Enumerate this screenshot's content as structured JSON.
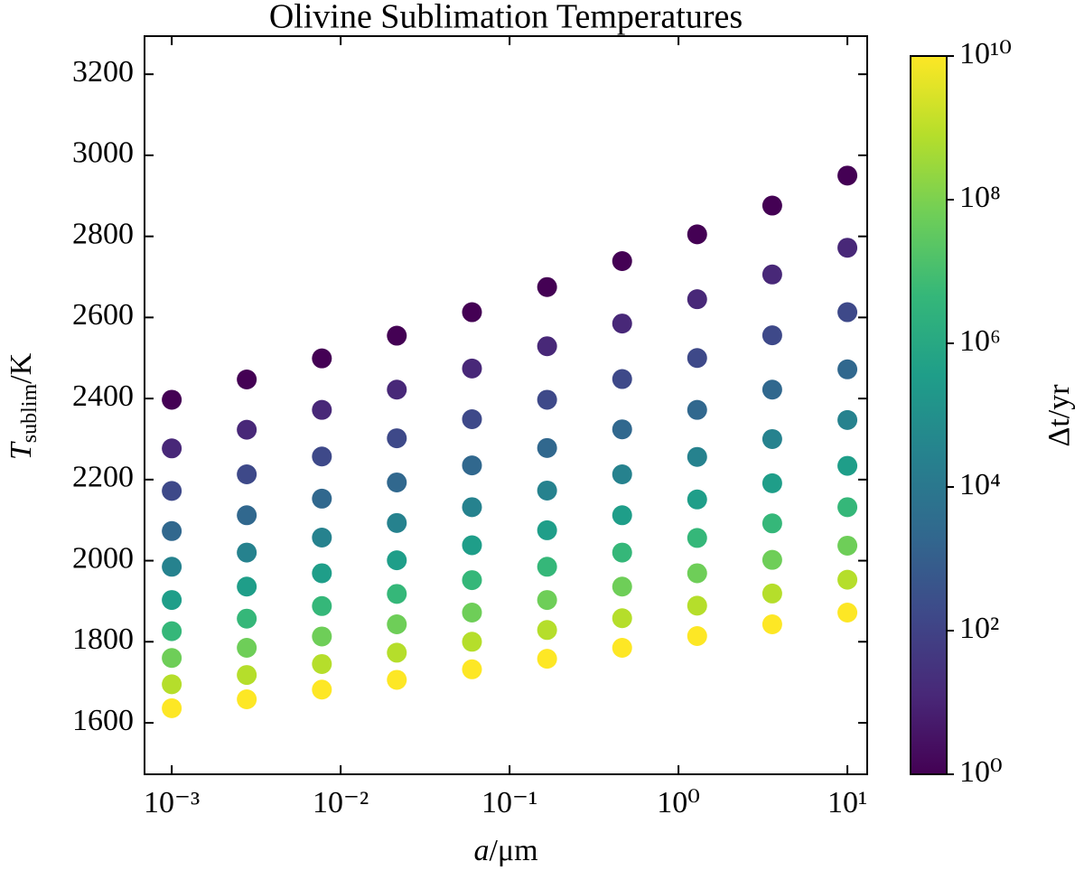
{
  "chart_data": {
    "type": "scatter",
    "title": "Olivine Sublimation Temperatures",
    "xlabel": [
      "a",
      "/μm"
    ],
    "ylabel": [
      "T",
      "sublim",
      "/K"
    ],
    "xscale": "log",
    "x": [
      0.001,
      0.00278,
      0.00774,
      0.0215,
      0.0599,
      0.1668,
      0.464,
      1.29,
      3.59,
      10
    ],
    "xlim": [
      0.00069,
      13.1
    ],
    "xticks": [
      {
        "value": 0.001,
        "label": "10⁻³"
      },
      {
        "value": 0.01,
        "label": "10⁻²"
      },
      {
        "value": 0.1,
        "label": "10⁻¹"
      },
      {
        "value": 1,
        "label": "10⁰"
      },
      {
        "value": 10,
        "label": "10¹"
      }
    ],
    "ylim": [
      1473,
      3294
    ],
    "yticks": [
      1600,
      1800,
      2000,
      2200,
      2400,
      2600,
      2800,
      3000,
      3200
    ],
    "colorbar": {
      "label": [
        "Δt",
        "/yr"
      ],
      "scale": "log",
      "lim": [
        1,
        10000000000
      ],
      "ticks": [
        {
          "value": 1,
          "label": "10⁰"
        },
        {
          "value": 100,
          "label": "10²"
        },
        {
          "value": 10000,
          "label": "10⁴"
        },
        {
          "value": 1000000,
          "label": "10⁶"
        },
        {
          "value": 100000000,
          "label": "10⁸"
        },
        {
          "value": 10000000000,
          "label": "10¹⁰"
        }
      ],
      "colormap": [
        "#440154",
        "#482878",
        "#3e4989",
        "#31688e",
        "#26828e",
        "#1f9e89",
        "#35b779",
        "#6ece58",
        "#b5de2b",
        "#fde725"
      ]
    },
    "series": [
      {
        "c": 1,
        "values": [
          2397,
          2447,
          2499,
          2555,
          2613,
          2675,
          2739,
          2805,
          2876,
          2950
        ]
      },
      {
        "c": 12.9,
        "values": [
          2277,
          2323,
          2372,
          2422,
          2474,
          2529,
          2585,
          2645,
          2706,
          2772
        ]
      },
      {
        "c": 167,
        "values": [
          2172,
          2213,
          2257,
          2302,
          2349,
          2397,
          2448,
          2500,
          2556,
          2613
        ]
      },
      {
        "c": 2154,
        "values": [
          2073,
          2112,
          2153,
          2193,
          2235,
          2278,
          2324,
          2372,
          2422,
          2472
        ]
      },
      {
        "c": 27826,
        "values": [
          1985,
          2020,
          2057,
          2093,
          2132,
          2173,
          2213,
          2256,
          2300,
          2347
        ]
      },
      {
        "c": 359381,
        "values": [
          1903,
          1936,
          1969,
          2001,
          2038,
          2075,
          2112,
          2151,
          2191,
          2234
        ]
      },
      {
        "c": 4641589,
        "values": [
          1826,
          1857,
          1888,
          1918,
          1952,
          1985,
          2020,
          2056,
          2092,
          2132
        ]
      },
      {
        "c": 59948425,
        "values": [
          1760,
          1785,
          1813,
          1843,
          1872,
          1903,
          1936,
          1969,
          2002,
          2037
        ]
      },
      {
        "c": 774263683,
        "values": [
          1695,
          1718,
          1745,
          1773,
          1800,
          1829,
          1858,
          1889,
          1919,
          1953
        ]
      },
      {
        "c": 10000000000,
        "values": [
          1636,
          1658,
          1682,
          1706,
          1732,
          1758,
          1785,
          1814,
          1843,
          1872
        ]
      }
    ]
  }
}
